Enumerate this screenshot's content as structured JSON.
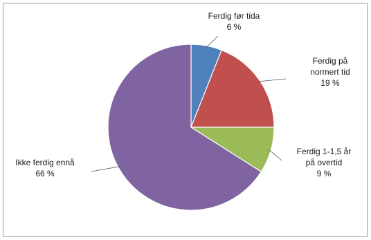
{
  "chart_data": {
    "type": "pie",
    "title": "",
    "slices": [
      {
        "name": "Ferdig før tida",
        "value": 6,
        "value_label": "6 %",
        "color": "#4f81bd"
      },
      {
        "name": "Ferdig på normert tid",
        "value": 19,
        "value_label": "19 %",
        "color": "#c0504d"
      },
      {
        "name": "Ferdig 1-1,5 år på overtid",
        "value": 9,
        "value_label": "9 %",
        "color": "#9bbb59"
      },
      {
        "name": "Ikke ferdig ennå",
        "value": 66,
        "value_label": "66 %",
        "color": "#8064a2"
      }
    ],
    "label_lines": [
      [
        "Ferdig før tida",
        "6 %"
      ],
      [
        "Ferdig på",
        "normert tid",
        "19 %"
      ],
      [
        "Ferdig 1-1,5 år",
        "på overtid",
        "9 %"
      ],
      [
        "Ikke ferdig ennå",
        "66 %"
      ]
    ],
    "start_angle_deg": 0,
    "direction": "clockwise",
    "legend": "none"
  }
}
